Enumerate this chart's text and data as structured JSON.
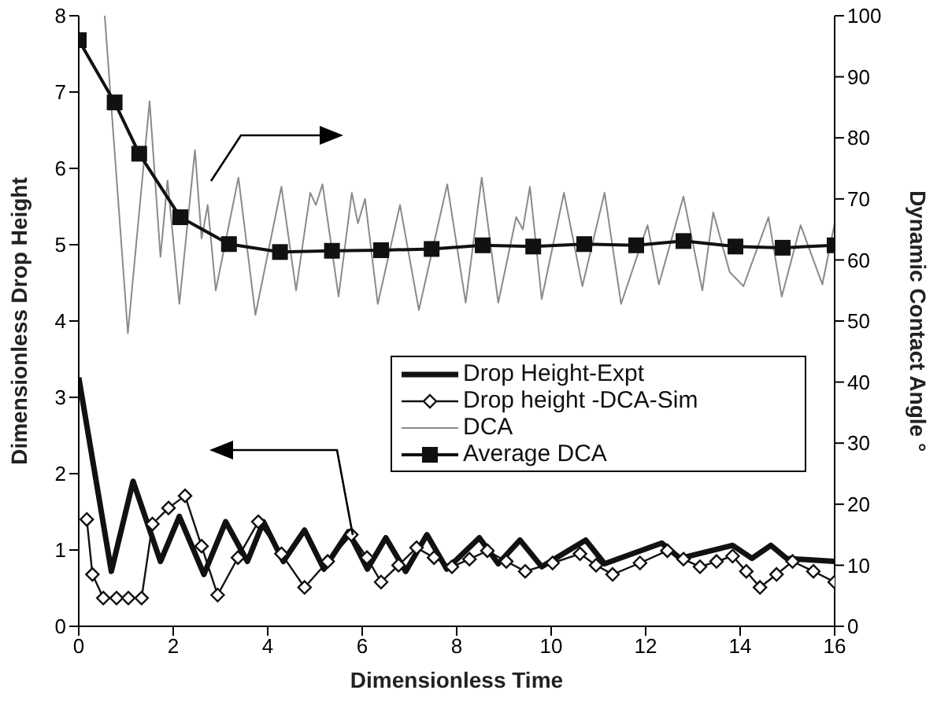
{
  "chart_data": {
    "type": "line",
    "xlabel": "Dimensionless Time",
    "ylabel": "Dimensionless Drop Height",
    "y2label": "Dynamic Contact Angle °",
    "xlim": [
      0,
      16
    ],
    "xticks": [
      0,
      2,
      4,
      6,
      8,
      10,
      12,
      14,
      16
    ],
    "ylim": [
      0,
      8
    ],
    "yticks": [
      0,
      1,
      2,
      3,
      4,
      5,
      6,
      7,
      8
    ],
    "y2lim": [
      0,
      100
    ],
    "y2ticks": [
      0,
      10,
      20,
      30,
      40,
      50,
      60,
      70,
      80,
      90,
      100
    ],
    "grid": false,
    "legend": "right",
    "series": [
      {
        "name": "Drop Height-Expt",
        "color": "#111111",
        "marker": "none",
        "x": [
          0,
          0.69,
          1.15,
          1.73,
          2.13,
          2.65,
          3.11,
          3.57,
          3.91,
          4.33,
          4.78,
          5.19,
          5.71,
          6.11,
          6.5,
          6.92,
          7.37,
          7.79,
          8.48,
          8.88,
          9.34,
          9.8,
          10.73,
          11.13,
          12.34,
          12.73,
          13.84,
          14.25,
          14.65,
          14.98,
          16
        ],
        "values": [
          3.26,
          0.72,
          1.9,
          0.85,
          1.44,
          0.68,
          1.37,
          0.85,
          1.37,
          0.85,
          1.26,
          0.75,
          1.24,
          0.75,
          1.16,
          0.72,
          1.2,
          0.75,
          1.16,
          0.82,
          1.13,
          0.78,
          1.13,
          0.82,
          1.09,
          0.89,
          1.06,
          0.89,
          1.06,
          0.89,
          0.85
        ]
      },
      {
        "name": "Drop height -DCA-Sim",
        "color": "#111111",
        "marker": "diamond",
        "x": [
          0.17,
          0.29,
          0.52,
          0.8,
          1.05,
          1.33,
          1.56,
          1.9,
          2.25,
          2.6,
          2.94,
          3.37,
          3.8,
          4.29,
          4.78,
          5.27,
          5.77,
          6.1,
          6.4,
          6.77,
          7.15,
          7.52,
          7.9,
          8.27,
          8.65,
          9.05,
          9.45,
          10.03,
          10.61,
          10.95,
          11.3,
          11.88,
          12.46,
          12.8,
          13.15,
          13.5,
          13.84,
          14.13,
          14.42,
          14.77,
          15.11,
          15.55,
          16
        ],
        "values": [
          1.4,
          0.68,
          0.37,
          0.37,
          0.37,
          0.37,
          1.34,
          1.55,
          1.71,
          1.05,
          0.41,
          0.9,
          1.37,
          0.95,
          0.51,
          0.85,
          1.2,
          0.9,
          0.58,
          0.8,
          1.03,
          0.9,
          0.78,
          0.88,
          0.99,
          0.85,
          0.72,
          0.83,
          0.95,
          0.8,
          0.68,
          0.83,
          0.99,
          0.88,
          0.78,
          0.85,
          0.92,
          0.72,
          0.51,
          0.68,
          0.85,
          0.72,
          0.58
        ]
      },
      {
        "name": "DCA",
        "color": "#8a8a8a",
        "marker": "none",
        "axis": "y2",
        "x": [
          0.55,
          1.04,
          1.5,
          1.73,
          1.88,
          2.13,
          2.46,
          2.6,
          2.73,
          2.9,
          3.38,
          3.74,
          4.29,
          4.6,
          4.9,
          5.02,
          5.16,
          5.5,
          5.78,
          5.91,
          6.06,
          6.33,
          6.8,
          7.2,
          7.8,
          8.19,
          8.53,
          8.88,
          9.26,
          9.4,
          9.55,
          9.8,
          10.27,
          10.66,
          11.13,
          11.48,
          12.04,
          12.28,
          12.8,
          13.2,
          13.43,
          13.78,
          14.07,
          14.6,
          14.88,
          15.28,
          15.74,
          16
        ],
        "values": [
          100,
          48,
          86,
          60.5,
          73,
          52.8,
          78,
          63.5,
          69,
          55,
          73.5,
          51,
          72,
          55,
          71,
          69,
          72.4,
          54,
          71,
          66,
          70,
          52.8,
          69,
          51.8,
          72.4,
          53,
          73.5,
          53,
          67,
          65,
          72,
          53.6,
          71,
          55.7,
          71,
          52.8,
          65.7,
          56,
          70.4,
          55,
          67.8,
          58,
          55.7,
          67,
          54,
          65.7,
          56,
          66
        ]
      },
      {
        "name": "Average DCA",
        "color": "#111111",
        "marker": "square",
        "axis": "y2",
        "x": [
          0,
          0.76,
          1.28,
          2.15,
          3.18,
          4.26,
          5.36,
          6.4,
          7.47,
          8.55,
          9.62,
          10.7,
          11.8,
          12.8,
          13.9,
          14.9,
          16
        ],
        "values": [
          96,
          85.8,
          77.4,
          67,
          62.6,
          61.3,
          61.5,
          61.6,
          61.8,
          62.4,
          62.2,
          62.6,
          62.4,
          63.1,
          62.2,
          62,
          62.4
        ]
      }
    ]
  }
}
